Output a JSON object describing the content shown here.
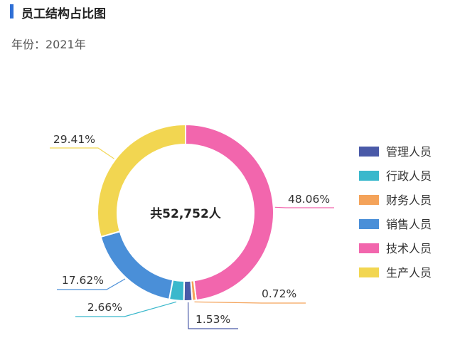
{
  "header": {
    "title": "员工结构占比图",
    "year_label": "年份：2021年"
  },
  "chart_data": {
    "type": "pie",
    "variant": "donut",
    "center_label": "共52,752人",
    "title": "",
    "slices": [
      {
        "name": "管理人员",
        "percent": 1.53,
        "label": "1.53%",
        "color": "#4a5aa8"
      },
      {
        "name": "行政人员",
        "percent": 2.66,
        "label": "2.66%",
        "color": "#3ab8cc"
      },
      {
        "name": "财务人员",
        "percent": 0.72,
        "label": "0.72%",
        "color": "#f4a35a"
      },
      {
        "name": "销售人员",
        "percent": 17.62,
        "label": "17.62%",
        "color": "#4a8fd8"
      },
      {
        "name": "技术人员",
        "percent": 48.06,
        "label": "48.06%",
        "color": "#f266ad"
      },
      {
        "name": "生产人员",
        "percent": 29.41,
        "label": "29.41%",
        "color": "#f2d651"
      }
    ],
    "legend_position": "right",
    "legend_order": [
      "管理人员",
      "行政人员",
      "财务人员",
      "销售人员",
      "技术人员",
      "生产人员"
    ]
  }
}
